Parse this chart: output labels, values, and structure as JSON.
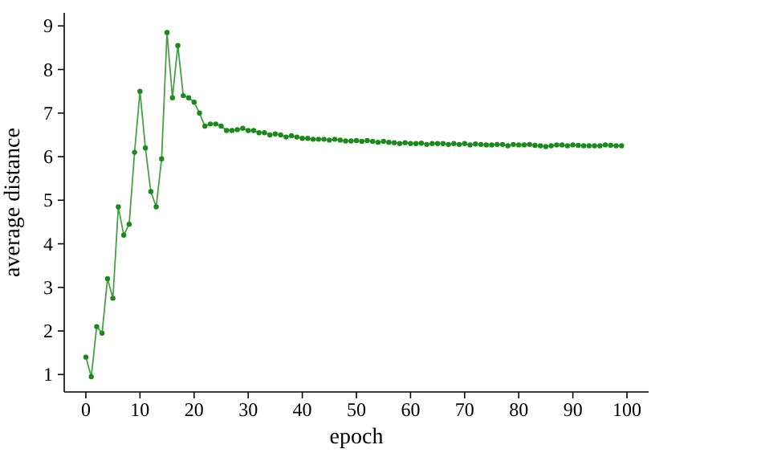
{
  "chart_data": {
    "type": "line",
    "xlabel": "epoch",
    "ylabel": "average distance",
    "xlim": [
      -4,
      104
    ],
    "xticks": [
      0,
      10,
      20,
      30,
      40,
      50,
      60,
      70,
      80,
      90,
      100
    ],
    "ylim": [
      0.6,
      9.3
    ],
    "yticks": [
      1,
      2,
      3,
      4,
      5,
      6,
      7,
      8,
      9
    ],
    "marker": "circle",
    "line_style": "solid",
    "x": [
      0,
      1,
      2,
      3,
      4,
      5,
      6,
      7,
      8,
      9,
      10,
      11,
      12,
      13,
      14,
      15,
      16,
      17,
      18,
      19,
      20,
      21,
      22,
      23,
      24,
      25,
      26,
      27,
      28,
      29,
      30,
      31,
      32,
      33,
      34,
      35,
      36,
      37,
      38,
      39,
      40,
      41,
      42,
      43,
      44,
      45,
      46,
      47,
      48,
      49,
      50,
      51,
      52,
      53,
      54,
      55,
      56,
      57,
      58,
      59,
      60,
      61,
      62,
      63,
      64,
      65,
      66,
      67,
      68,
      69,
      70,
      71,
      72,
      73,
      74,
      75,
      76,
      77,
      78,
      79,
      80,
      81,
      82,
      83,
      84,
      85,
      86,
      87,
      88,
      89,
      90,
      91,
      92,
      93,
      94,
      95,
      96,
      97,
      98,
      99
    ],
    "series": [
      {
        "color": "#1a8a1a",
        "values": [
          1.4,
          0.95,
          2.1,
          1.95,
          3.2,
          2.75,
          4.85,
          4.2,
          4.45,
          6.1,
          7.5,
          6.2,
          5.2,
          4.85,
          5.95,
          8.85,
          7.35,
          8.55,
          7.4,
          7.35,
          7.25,
          7.0,
          6.7,
          6.75,
          6.75,
          6.7,
          6.6,
          6.6,
          6.62,
          6.65,
          6.6,
          6.6,
          6.55,
          6.55,
          6.5,
          6.52,
          6.5,
          6.45,
          6.48,
          6.45,
          6.42,
          6.42,
          6.4,
          6.4,
          6.4,
          6.38,
          6.4,
          6.38,
          6.36,
          6.36,
          6.37,
          6.35,
          6.37,
          6.35,
          6.33,
          6.35,
          6.33,
          6.32,
          6.3,
          6.32,
          6.3,
          6.3,
          6.31,
          6.28,
          6.3,
          6.3,
          6.3,
          6.28,
          6.3,
          6.28,
          6.3,
          6.27,
          6.29,
          6.28,
          6.27,
          6.27,
          6.28,
          6.28,
          6.25,
          6.28,
          6.27,
          6.27,
          6.28,
          6.26,
          6.25,
          6.23,
          6.25,
          6.27,
          6.27,
          6.25,
          6.27,
          6.26,
          6.25,
          6.25,
          6.25,
          6.25,
          6.27,
          6.26,
          6.25,
          6.25
        ]
      }
    ]
  }
}
